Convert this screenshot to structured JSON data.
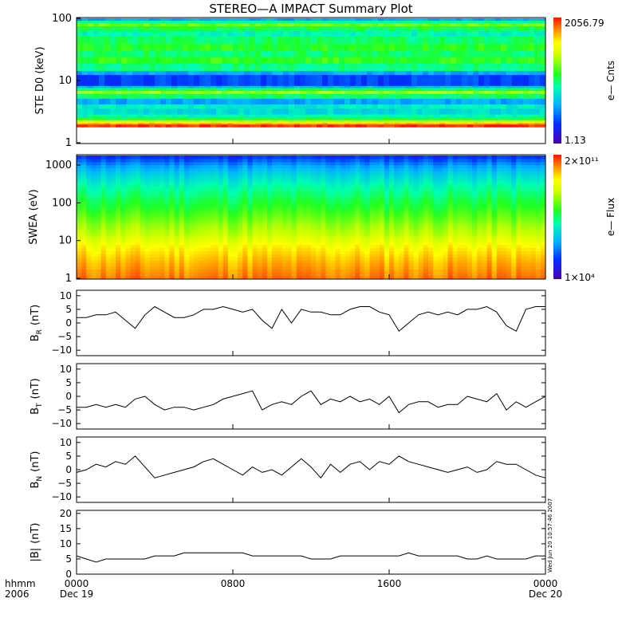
{
  "title": "STEREO—A IMPACT Summary Plot",
  "timestamp": "Wed Jun 20 10:57:46 2007",
  "time_axis": {
    "row1_label": "hhmm",
    "row2_label": "2006",
    "ticks": [
      {
        "hour": 0,
        "label": "0000",
        "date": "Dec 19"
      },
      {
        "hour": 8,
        "label": "0800",
        "date": ""
      },
      {
        "hour": 16,
        "label": "1600",
        "date": ""
      },
      {
        "hour": 24,
        "label": "0000",
        "date": "Dec 20"
      }
    ]
  },
  "chart_data": [
    {
      "type": "heatmap",
      "ylabel": "STE D0 (keV)",
      "yscale": "log",
      "ylim": [
        1,
        100
      ],
      "yticks": [
        "1",
        "10",
        "100"
      ],
      "colorbar": {
        "label": "e— Cnts",
        "max": "2056.79",
        "min": "1.13",
        "scale": "log"
      },
      "bands_keV": [
        {
          "from": 1.8,
          "to": 2.0,
          "level": 0.98
        },
        {
          "from": 2.0,
          "to": 2.1,
          "level": 0.88
        },
        {
          "from": 2.1,
          "to": 2.35,
          "level": 0.72
        },
        {
          "from": 2.35,
          "to": 2.6,
          "level": 0.52
        },
        {
          "from": 2.6,
          "to": 2.9,
          "level": 0.45
        },
        {
          "from": 2.9,
          "to": 3.6,
          "level": 0.38
        },
        {
          "from": 3.6,
          "to": 4.2,
          "level": 0.42
        },
        {
          "from": 4.2,
          "to": 5.2,
          "level": 0.3
        },
        {
          "from": 5.2,
          "to": 6.2,
          "level": 0.5
        },
        {
          "from": 6.2,
          "to": 6.9,
          "level": 0.66
        },
        {
          "from": 6.9,
          "to": 7.7,
          "level": 0.5
        },
        {
          "from": 7.7,
          "to": 8.3,
          "level": 0.32
        },
        {
          "from": 8.3,
          "to": 12.5,
          "level": 0.18
        },
        {
          "from": 12.5,
          "to": 14.5,
          "level": 0.3
        },
        {
          "from": 14.5,
          "to": 19.0,
          "level": 0.48
        },
        {
          "from": 19.0,
          "to": 24.0,
          "level": 0.56
        },
        {
          "from": 24.0,
          "to": 31.0,
          "level": 0.5
        },
        {
          "from": 31.0,
          "to": 40.0,
          "level": 0.55
        },
        {
          "from": 40.0,
          "to": 52.0,
          "level": 0.5
        },
        {
          "from": 52.0,
          "to": 64.0,
          "level": 0.44
        },
        {
          "from": 64.0,
          "to": 76.0,
          "level": 0.52
        },
        {
          "from": 76.0,
          "to": 85.0,
          "level": 0.62
        },
        {
          "from": 85.0,
          "to": 93.0,
          "level": 0.46
        },
        {
          "from": 93.0,
          "to": 100.0,
          "level": 0.3
        }
      ]
    },
    {
      "type": "heatmap",
      "ylabel": "SWEA (eV)",
      "yscale": "log",
      "ylim": [
        1,
        1800
      ],
      "yticks": [
        "1",
        "10",
        "100",
        "1000"
      ],
      "colorbar": {
        "label": "e— Flux",
        "max": "2×10¹¹",
        "min": "1×10⁴",
        "scale": "log"
      },
      "energy_levels": [
        {
          "eV": 1,
          "level": 0.92
        },
        {
          "eV": 3,
          "level": 0.86
        },
        {
          "eV": 7,
          "level": 0.8
        },
        {
          "eV": 15,
          "level": 0.7
        },
        {
          "eV": 30,
          "level": 0.64
        },
        {
          "eV": 70,
          "level": 0.56
        },
        {
          "eV": 150,
          "level": 0.5
        },
        {
          "eV": 300,
          "level": 0.44
        },
        {
          "eV": 600,
          "level": 0.36
        },
        {
          "eV": 1000,
          "level": 0.28
        },
        {
          "eV": 1400,
          "level": 0.2
        },
        {
          "eV": 1800,
          "level": 0.14
        }
      ]
    },
    {
      "type": "line",
      "ylabel": "B",
      "ylabel_sub": "R",
      "yunit": "(nT)",
      "ylim": [
        -12,
        12
      ],
      "yticks": [
        "10",
        "5",
        "0",
        "−5",
        "−10"
      ],
      "x_hours": [
        0,
        0.5,
        1,
        1.5,
        2,
        2.5,
        3,
        3.5,
        4,
        4.5,
        5,
        5.5,
        6,
        6.5,
        7,
        7.5,
        8,
        8.5,
        9,
        9.5,
        10,
        10.5,
        11,
        11.5,
        12,
        12.5,
        13,
        13.5,
        14,
        14.5,
        15,
        15.5,
        16,
        16.5,
        17,
        17.5,
        18,
        18.5,
        19,
        19.5,
        20,
        20.5,
        21,
        21.5,
        22,
        22.5,
        23,
        23.5,
        24
      ],
      "values": [
        2,
        2,
        3,
        3,
        4,
        1,
        -2,
        3,
        6,
        4,
        2,
        2,
        3,
        5,
        5,
        6,
        5,
        4,
        5,
        1,
        -2,
        5,
        0,
        5,
        4,
        4,
        3,
        3,
        5,
        6,
        6,
        4,
        3,
        -3,
        0,
        3,
        4,
        3,
        4,
        3,
        5,
        5,
        6,
        4,
        -1,
        -3,
        5,
        6,
        6
      ]
    },
    {
      "type": "line",
      "ylabel": "B",
      "ylabel_sub": "T",
      "yunit": "(nT)",
      "ylim": [
        -12,
        12
      ],
      "yticks": [
        "10",
        "5",
        "0",
        "−5",
        "−10"
      ],
      "x_hours": [
        0,
        0.5,
        1,
        1.5,
        2,
        2.5,
        3,
        3.5,
        4,
        4.5,
        5,
        5.5,
        6,
        6.5,
        7,
        7.5,
        8,
        8.5,
        9,
        9.5,
        10,
        10.5,
        11,
        11.5,
        12,
        12.5,
        13,
        13.5,
        14,
        14.5,
        15,
        15.5,
        16,
        16.5,
        17,
        17.5,
        18,
        18.5,
        19,
        19.5,
        20,
        20.5,
        21,
        21.5,
        22,
        22.5,
        23,
        23.5,
        24
      ],
      "values": [
        -4,
        -4,
        -3,
        -4,
        -3,
        -4,
        -1,
        0,
        -3,
        -5,
        -4,
        -4,
        -5,
        -4,
        -3,
        -1,
        0,
        1,
        2,
        -5,
        -3,
        -2,
        -3,
        0,
        2,
        -3,
        -1,
        -2,
        0,
        -2,
        -1,
        -3,
        0,
        -6,
        -3,
        -2,
        -2,
        -4,
        -3,
        -3,
        0,
        -1,
        -2,
        1,
        -5,
        -2,
        -4,
        -2,
        0
      ]
    },
    {
      "type": "line",
      "ylabel": "B",
      "ylabel_sub": "N",
      "yunit": "(nT)",
      "ylim": [
        -12,
        12
      ],
      "yticks": [
        "10",
        "5",
        "0",
        "−5",
        "−10"
      ],
      "x_hours": [
        0,
        0.5,
        1,
        1.5,
        2,
        2.5,
        3,
        3.5,
        4,
        4.5,
        5,
        5.5,
        6,
        6.5,
        7,
        7.5,
        8,
        8.5,
        9,
        9.5,
        10,
        10.5,
        11,
        11.5,
        12,
        12.5,
        13,
        13.5,
        14,
        14.5,
        15,
        15.5,
        16,
        16.5,
        17,
        17.5,
        18,
        18.5,
        19,
        19.5,
        20,
        20.5,
        21,
        21.5,
        22,
        22.5,
        23,
        23.5,
        24
      ],
      "values": [
        -1,
        0,
        2,
        1,
        3,
        2,
        5,
        1,
        -3,
        -2,
        -1,
        0,
        1,
        3,
        4,
        2,
        0,
        -2,
        1,
        -1,
        0,
        -2,
        1,
        4,
        1,
        -3,
        2,
        -1,
        2,
        3,
        0,
        3,
        2,
        5,
        3,
        2,
        1,
        0,
        -1,
        0,
        1,
        -1,
        0,
        3,
        2,
        2,
        0,
        -2,
        -3
      ]
    },
    {
      "type": "line",
      "ylabel": "|B|",
      "yunit": "(nT)",
      "ylim": [
        0,
        21
      ],
      "yticks": [
        "20",
        "15",
        "10",
        "5",
        "0"
      ],
      "x_hours": [
        0,
        0.5,
        1,
        1.5,
        2,
        2.5,
        3,
        3.5,
        4,
        4.5,
        5,
        5.5,
        6,
        6.5,
        7,
        7.5,
        8,
        8.5,
        9,
        9.5,
        10,
        10.5,
        11,
        11.5,
        12,
        12.5,
        13,
        13.5,
        14,
        14.5,
        15,
        15.5,
        16,
        16.5,
        17,
        17.5,
        18,
        18.5,
        19,
        19.5,
        20,
        20.5,
        21,
        21.5,
        22,
        22.5,
        23,
        23.5,
        24
      ],
      "values": [
        6,
        5,
        4,
        5,
        5,
        5,
        5,
        5,
        6,
        6,
        6,
        7,
        7,
        7,
        7,
        7,
        7,
        7,
        6,
        6,
        6,
        6,
        6,
        6,
        5,
        5,
        5,
        6,
        6,
        6,
        6,
        6,
        6,
        6,
        7,
        6,
        6,
        6,
        6,
        6,
        5,
        5,
        6,
        5,
        5,
        5,
        5,
        6,
        6
      ]
    }
  ]
}
